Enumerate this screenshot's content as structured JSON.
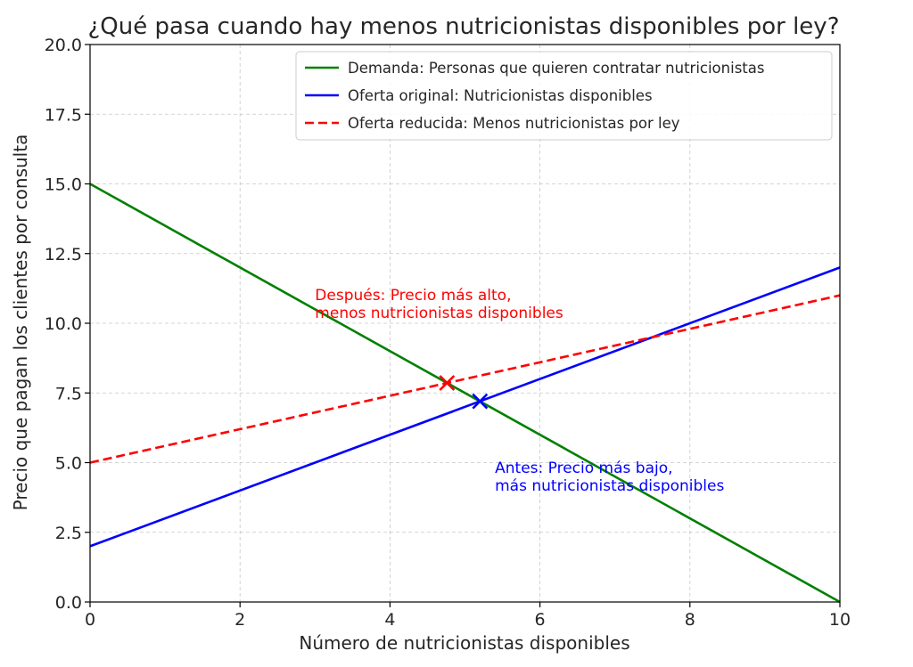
{
  "chart_data": {
    "type": "line",
    "title": "¿Qué pasa cuando hay menos nutricionistas disponibles por ley?",
    "xlabel": "Número de nutricionistas disponibles",
    "ylabel": "Precio que pagan los clientes por consulta",
    "xlim": [
      0,
      10
    ],
    "ylim": [
      0,
      20
    ],
    "xticks": [
      0,
      2,
      4,
      6,
      8,
      10
    ],
    "xtick_labels": [
      "0",
      "2",
      "4",
      "6",
      "8",
      "10"
    ],
    "yticks": [
      0,
      2.5,
      5,
      7.5,
      10,
      12.5,
      15,
      17.5,
      20
    ],
    "ytick_labels": [
      "0.0",
      "2.5",
      "5.0",
      "7.5",
      "10.0",
      "12.5",
      "15.0",
      "17.5",
      "20.0"
    ],
    "grid": true,
    "legend_position": "top-right",
    "series": [
      {
        "name": "Demanda: Personas que quieren contratar nutricionistas",
        "color": "#008000",
        "style": "solid",
        "x": [
          0,
          10
        ],
        "y": [
          15,
          0
        ]
      },
      {
        "name": "Oferta original: Nutricionistas disponibles",
        "color": "#0000ff",
        "style": "solid",
        "x": [
          0,
          10
        ],
        "y": [
          2,
          12
        ]
      },
      {
        "name": "Oferta reducida: Menos nutricionistas por ley",
        "color": "#ff0000",
        "style": "dashed",
        "x": [
          0,
          10
        ],
        "y": [
          5,
          11
        ]
      }
    ],
    "markers": [
      {
        "label": "equilibrio-original",
        "x": 5.2,
        "y": 7.2,
        "color": "#0000ff",
        "symbol": "x"
      },
      {
        "label": "equilibrio-nuevo",
        "x": 4.76,
        "y": 7.86,
        "color": "#ff0000",
        "symbol": "x"
      }
    ],
    "annotations": [
      {
        "lines": [
          "Después: Precio más alto,",
          "menos nutricionistas disponibles"
        ],
        "x": 3.0,
        "y": 10.0,
        "color": "#ff0000"
      },
      {
        "lines": [
          "Antes: Precio más bajo,",
          "más nutricionistas disponibles"
        ],
        "x": 5.4,
        "y": 3.8,
        "color": "#0000ff"
      }
    ]
  }
}
